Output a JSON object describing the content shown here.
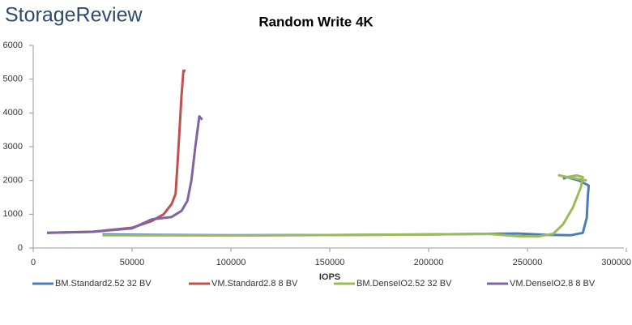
{
  "logo": "StorageReview",
  "chart_data": {
    "type": "line",
    "title": "Random Write 4K",
    "xlabel": "IOPS",
    "xlim": [
      0,
      300000
    ],
    "xticks": [
      0,
      50000,
      100000,
      150000,
      200000,
      250000,
      300000
    ],
    "ylim": [
      0,
      6000
    ],
    "yticks": [
      0,
      1000,
      2000,
      3000,
      4000,
      5000,
      6000
    ],
    "grid": false,
    "legend": "bottom",
    "series": [
      {
        "name": "BM.Standard2.52 32 BV",
        "color": "#4a7ebb",
        "x": [
          35000,
          60000,
          100000,
          150000,
          200000,
          230000,
          245000,
          260000,
          272000,
          278000,
          280000,
          280500,
          281000,
          276000,
          270000,
          268000
        ],
        "values": [
          400,
          390,
          380,
          385,
          400,
          420,
          430,
          390,
          380,
          450,
          900,
          1500,
          1850,
          2000,
          2100,
          2050
        ]
      },
      {
        "name": "VM.Standard2.8 8 BV",
        "color": "#c0504d",
        "x": [
          7000,
          30000,
          50000,
          60000,
          66000,
          70000,
          72000,
          73000,
          74000,
          75000,
          76000,
          77000
        ],
        "values": [
          450,
          480,
          600,
          800,
          1000,
          1300,
          1600,
          2500,
          3500,
          4500,
          5250,
          5250
        ]
      },
      {
        "name": "BM.DenseIO2.52 32 BV",
        "color": "#9bbb59",
        "x": [
          35000,
          100000,
          200000,
          230000,
          245000,
          255000,
          263000,
          268000,
          273000,
          277000,
          278000,
          275000,
          270000,
          266000,
          272000,
          280000
        ],
        "values": [
          380,
          370,
          400,
          420,
          350,
          340,
          420,
          700,
          1200,
          1800,
          2100,
          2150,
          2100,
          2150,
          2080,
          2000
        ]
      },
      {
        "name": "VM.DenseIO2.8 8 BV",
        "color": "#8064a2",
        "x": [
          7000,
          30000,
          50000,
          60000,
          70000,
          75000,
          78000,
          80000,
          82000,
          84000,
          85500
        ],
        "values": [
          450,
          480,
          580,
          850,
          920,
          1100,
          1400,
          2000,
          3000,
          3900,
          3800
        ]
      }
    ]
  }
}
